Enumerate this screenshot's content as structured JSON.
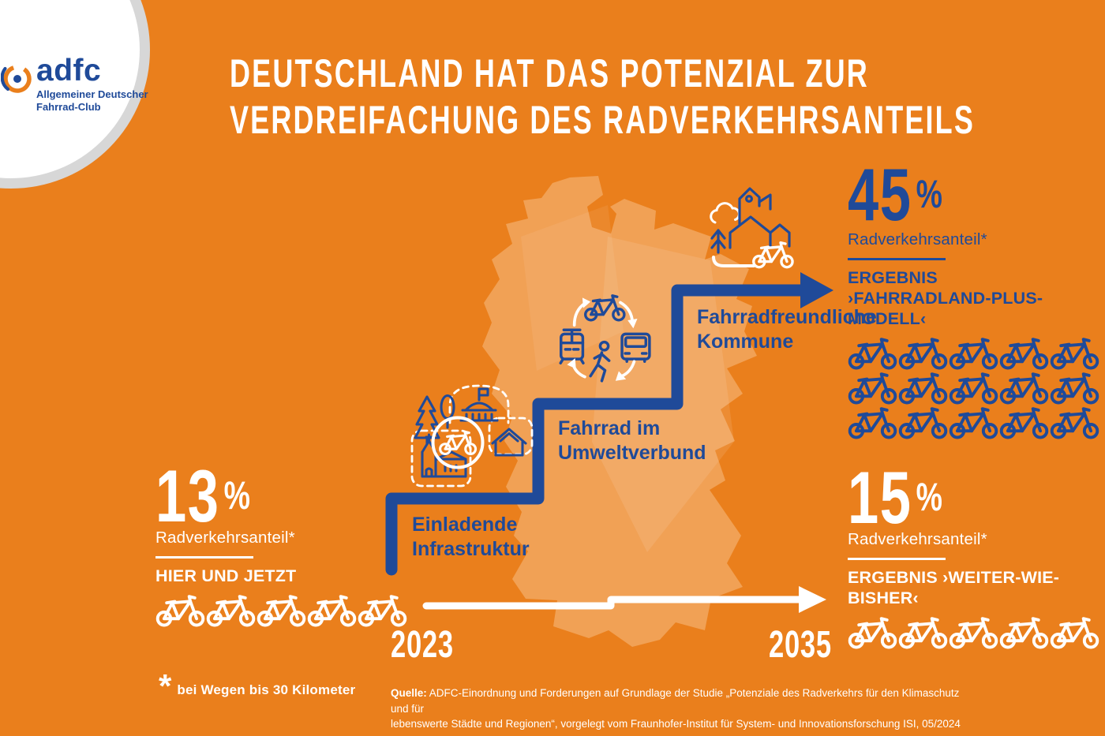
{
  "colors": {
    "background": "#EA7F1C",
    "map_fill": "#F1A155",
    "navy": "#1F4A99",
    "white": "#FFFFFF",
    "logo_ring_gray": "#D7D7D7"
  },
  "logo": {
    "brand": "adfc",
    "subtitle_line1": "Allgemeiner Deutscher",
    "subtitle_line2": "Fahrrad-Club"
  },
  "title": {
    "line1": "DEUTSCHLAND HAT DAS POTENZIAL ZUR",
    "line2": "VERDREIFACHUNG DES RADVERKEHRSANTEILS"
  },
  "current_state": {
    "value": "13",
    "unit": "%",
    "label": "Radverkehrsanteil*",
    "scenario": "HIER UND JETZT",
    "bike_count": 5
  },
  "timeline": {
    "start_year": "2023",
    "end_year": "2035"
  },
  "steps": [
    {
      "line1": "Einladende",
      "line2": "Infrastruktur"
    },
    {
      "line1": "Fahrrad im",
      "line2": "Umweltverbund"
    },
    {
      "line1": "Fahrradfreundliche",
      "line2": "Kommune"
    }
  ],
  "scenario_plus": {
    "value": "45",
    "unit": "%",
    "label": "Radverkehrsanteil*",
    "result_line1": "ERGEBNIS",
    "result_line2": "›FAHRRADLAND-PLUS-MODELL‹",
    "bike_count": 15
  },
  "scenario_baseline": {
    "value": "15",
    "unit": "%",
    "label": "Radverkehrsanteil*",
    "result_line1": "ERGEBNIS ›WEITER-WIE-BISHER‹",
    "bike_count": 5
  },
  "footnote": {
    "symbol": "*",
    "text": "bei Wegen bis 30 Kilometer"
  },
  "source": {
    "label": "Quelle:",
    "line1": "ADFC-Einordnung und Forderungen auf Grundlage der Studie „Potenziale des Radverkehrs für den Klimaschutz und für",
    "line2": "lebenswerte Städte und Regionen“, vorgelegt vom Fraunhofer-Institut für System- und Innovationsforschung ISI, 05/2024"
  }
}
